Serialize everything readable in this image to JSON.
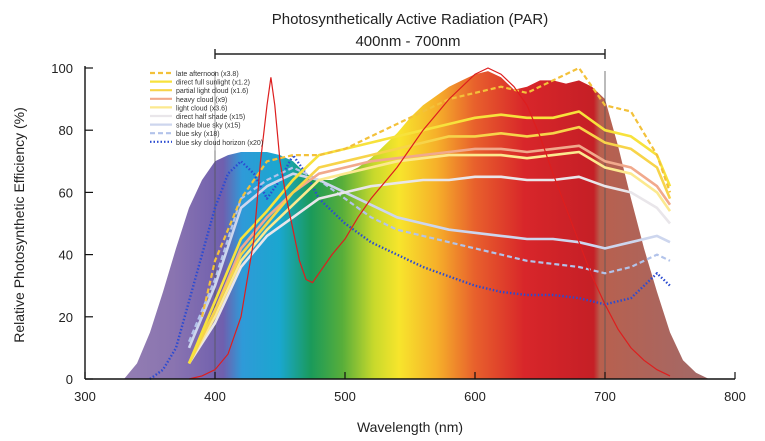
{
  "chart_data": {
    "type": "area",
    "title": "Photosynthetically Active Radiation (PAR)",
    "subtitle": "400nm - 700nm",
    "xlabel": "Wavelength (nm)",
    "ylabel": "Relative Photosynthetic Efficiency (%)",
    "xlim": [
      300,
      800
    ],
    "ylim": [
      0,
      100
    ],
    "xticks": [
      "300",
      "400",
      "500",
      "600",
      "700",
      "800"
    ],
    "yticks": [
      "0",
      "20",
      "40",
      "60",
      "80",
      "100"
    ],
    "par_range": [
      400,
      700
    ],
    "grid": false,
    "legend_position": "top-left",
    "mccree_curve": {
      "x": [
        330,
        340,
        350,
        360,
        370,
        380,
        390,
        400,
        410,
        420,
        430,
        440,
        450,
        460,
        470,
        480,
        490,
        500,
        510,
        520,
        530,
        540,
        550,
        560,
        570,
        580,
        590,
        600,
        610,
        620,
        630,
        640,
        650,
        660,
        670,
        680,
        690,
        700,
        710,
        720,
        730,
        740,
        750,
        760,
        770,
        780
      ],
      "y": [
        0,
        5,
        15,
        28,
        42,
        55,
        64,
        70,
        72,
        73,
        73,
        73,
        72,
        70,
        66,
        64,
        64,
        66,
        68,
        71,
        75,
        79,
        84,
        88,
        91,
        94,
        96,
        98,
        99,
        97,
        93,
        94,
        96,
        96,
        95,
        96,
        94,
        90,
        75,
        58,
        42,
        28,
        15,
        6,
        2,
        0
      ]
    },
    "absorption_curve": {
      "name": "",
      "color": "#dd1e1e",
      "x": [
        380,
        390,
        400,
        410,
        420,
        430,
        435,
        440,
        443,
        446,
        450,
        455,
        460,
        465,
        470,
        475,
        480,
        490,
        500,
        510,
        520,
        530,
        540,
        550,
        560,
        570,
        580,
        590,
        600,
        610,
        620,
        630,
        640,
        650,
        660,
        670,
        680,
        690,
        700,
        710,
        720,
        730,
        740,
        750
      ],
      "y": [
        0,
        1,
        3,
        8,
        20,
        45,
        70,
        88,
        97,
        88,
        70,
        58,
        48,
        38,
        32,
        31,
        34,
        40,
        45,
        52,
        58,
        63,
        68,
        74,
        80,
        85,
        90,
        94,
        98,
        100,
        98,
        94,
        88,
        78,
        66,
        55,
        44,
        33,
        24,
        16,
        10,
        6,
        3,
        1
      ]
    },
    "series": [
      {
        "name": "late afternoon (x3.8)",
        "color": "#f3c13a",
        "style": "dashed",
        "x": [
          390,
          400,
          420,
          440,
          460,
          480,
          500,
          520,
          540,
          560,
          580,
          600,
          620,
          640,
          660,
          680,
          700,
          720,
          740,
          750
        ],
        "y": [
          20,
          38,
          58,
          70,
          72,
          72,
          74,
          78,
          82,
          86,
          90,
          92,
          94,
          92,
          96,
          100,
          88,
          86,
          72,
          60
        ]
      },
      {
        "name": "direct full sunlight (x1.2)",
        "color": "#f7e23c",
        "style": "solid",
        "x": [
          380,
          400,
          420,
          440,
          460,
          480,
          500,
          520,
          540,
          560,
          580,
          600,
          620,
          640,
          660,
          680,
          700,
          720,
          740,
          750
        ],
        "y": [
          5,
          25,
          45,
          54,
          64,
          72,
          74,
          76,
          78,
          80,
          82,
          84,
          85,
          84,
          84,
          86,
          80,
          78,
          72,
          62
        ]
      },
      {
        "name": "partial light cloud (x1.6)",
        "color": "#f7d44a",
        "style": "solid",
        "x": [
          380,
          400,
          420,
          440,
          460,
          480,
          500,
          520,
          540,
          560,
          580,
          600,
          620,
          640,
          660,
          680,
          700,
          720,
          740,
          750
        ],
        "y": [
          5,
          22,
          40,
          50,
          60,
          68,
          70,
          72,
          74,
          76,
          78,
          78,
          79,
          78,
          79,
          81,
          76,
          74,
          68,
          58
        ]
      },
      {
        "name": "heavy cloud (x9)",
        "color": "#f1a98c",
        "style": "solid",
        "x": [
          380,
          400,
          420,
          440,
          460,
          480,
          500,
          520,
          540,
          560,
          580,
          600,
          620,
          640,
          660,
          680,
          700,
          720,
          740,
          750
        ],
        "y": [
          5,
          22,
          42,
          52,
          60,
          66,
          68,
          70,
          71,
          72,
          73,
          74,
          74,
          73,
          74,
          75,
          70,
          68,
          62,
          56
        ]
      },
      {
        "name": "light cloud (x3.6)",
        "color": "#fce98f",
        "style": "solid",
        "x": [
          380,
          400,
          420,
          440,
          460,
          480,
          500,
          520,
          540,
          560,
          580,
          600,
          620,
          640,
          660,
          680,
          700,
          720,
          740,
          750
        ],
        "y": [
          5,
          20,
          38,
          48,
          56,
          64,
          66,
          68,
          70,
          71,
          72,
          72,
          72,
          71,
          72,
          73,
          68,
          66,
          60,
          54
        ]
      },
      {
        "name": "direct half shade (x15)",
        "color": "#e9e6ea",
        "style": "solid",
        "x": [
          380,
          400,
          420,
          440,
          460,
          480,
          500,
          520,
          540,
          560,
          580,
          600,
          620,
          640,
          660,
          680,
          700,
          720,
          740,
          750
        ],
        "y": [
          5,
          18,
          36,
          46,
          52,
          58,
          60,
          62,
          63,
          64,
          64,
          65,
          65,
          64,
          64,
          65,
          62,
          60,
          55,
          50
        ]
      },
      {
        "name": "shade blue sky (x15)",
        "color": "#cdd6ee",
        "style": "solid",
        "x": [
          380,
          400,
          420,
          440,
          460,
          480,
          500,
          520,
          540,
          560,
          580,
          600,
          620,
          640,
          660,
          680,
          700,
          720,
          740,
          750
        ],
        "y": [
          10,
          30,
          55,
          62,
          66,
          64,
          60,
          56,
          52,
          50,
          48,
          47,
          46,
          45,
          45,
          44,
          42,
          44,
          46,
          44
        ]
      },
      {
        "name": "blue sky (x18)",
        "color": "#b2c3ea",
        "style": "dashed",
        "x": [
          380,
          400,
          420,
          440,
          460,
          480,
          500,
          520,
          540,
          560,
          580,
          600,
          620,
          640,
          660,
          680,
          700,
          720,
          740,
          750
        ],
        "y": [
          12,
          32,
          58,
          64,
          68,
          64,
          58,
          52,
          48,
          46,
          44,
          42,
          40,
          38,
          37,
          36,
          34,
          36,
          40,
          38
        ]
      },
      {
        "name": "blue sky cloud horizon (x20)",
        "color": "#2b4bd1",
        "style": "dotted",
        "x": [
          350,
          360,
          370,
          380,
          390,
          400,
          410,
          420,
          430,
          440,
          450,
          460,
          470,
          480,
          490,
          500,
          520,
          540,
          560,
          580,
          600,
          620,
          640,
          660,
          680,
          700,
          720,
          740,
          750
        ],
        "y": [
          0,
          3,
          10,
          25,
          40,
          55,
          66,
          70,
          66,
          58,
          64,
          72,
          66,
          58,
          54,
          50,
          44,
          40,
          36,
          33,
          30,
          28,
          27,
          27,
          26,
          24,
          26,
          34,
          30
        ]
      }
    ]
  }
}
